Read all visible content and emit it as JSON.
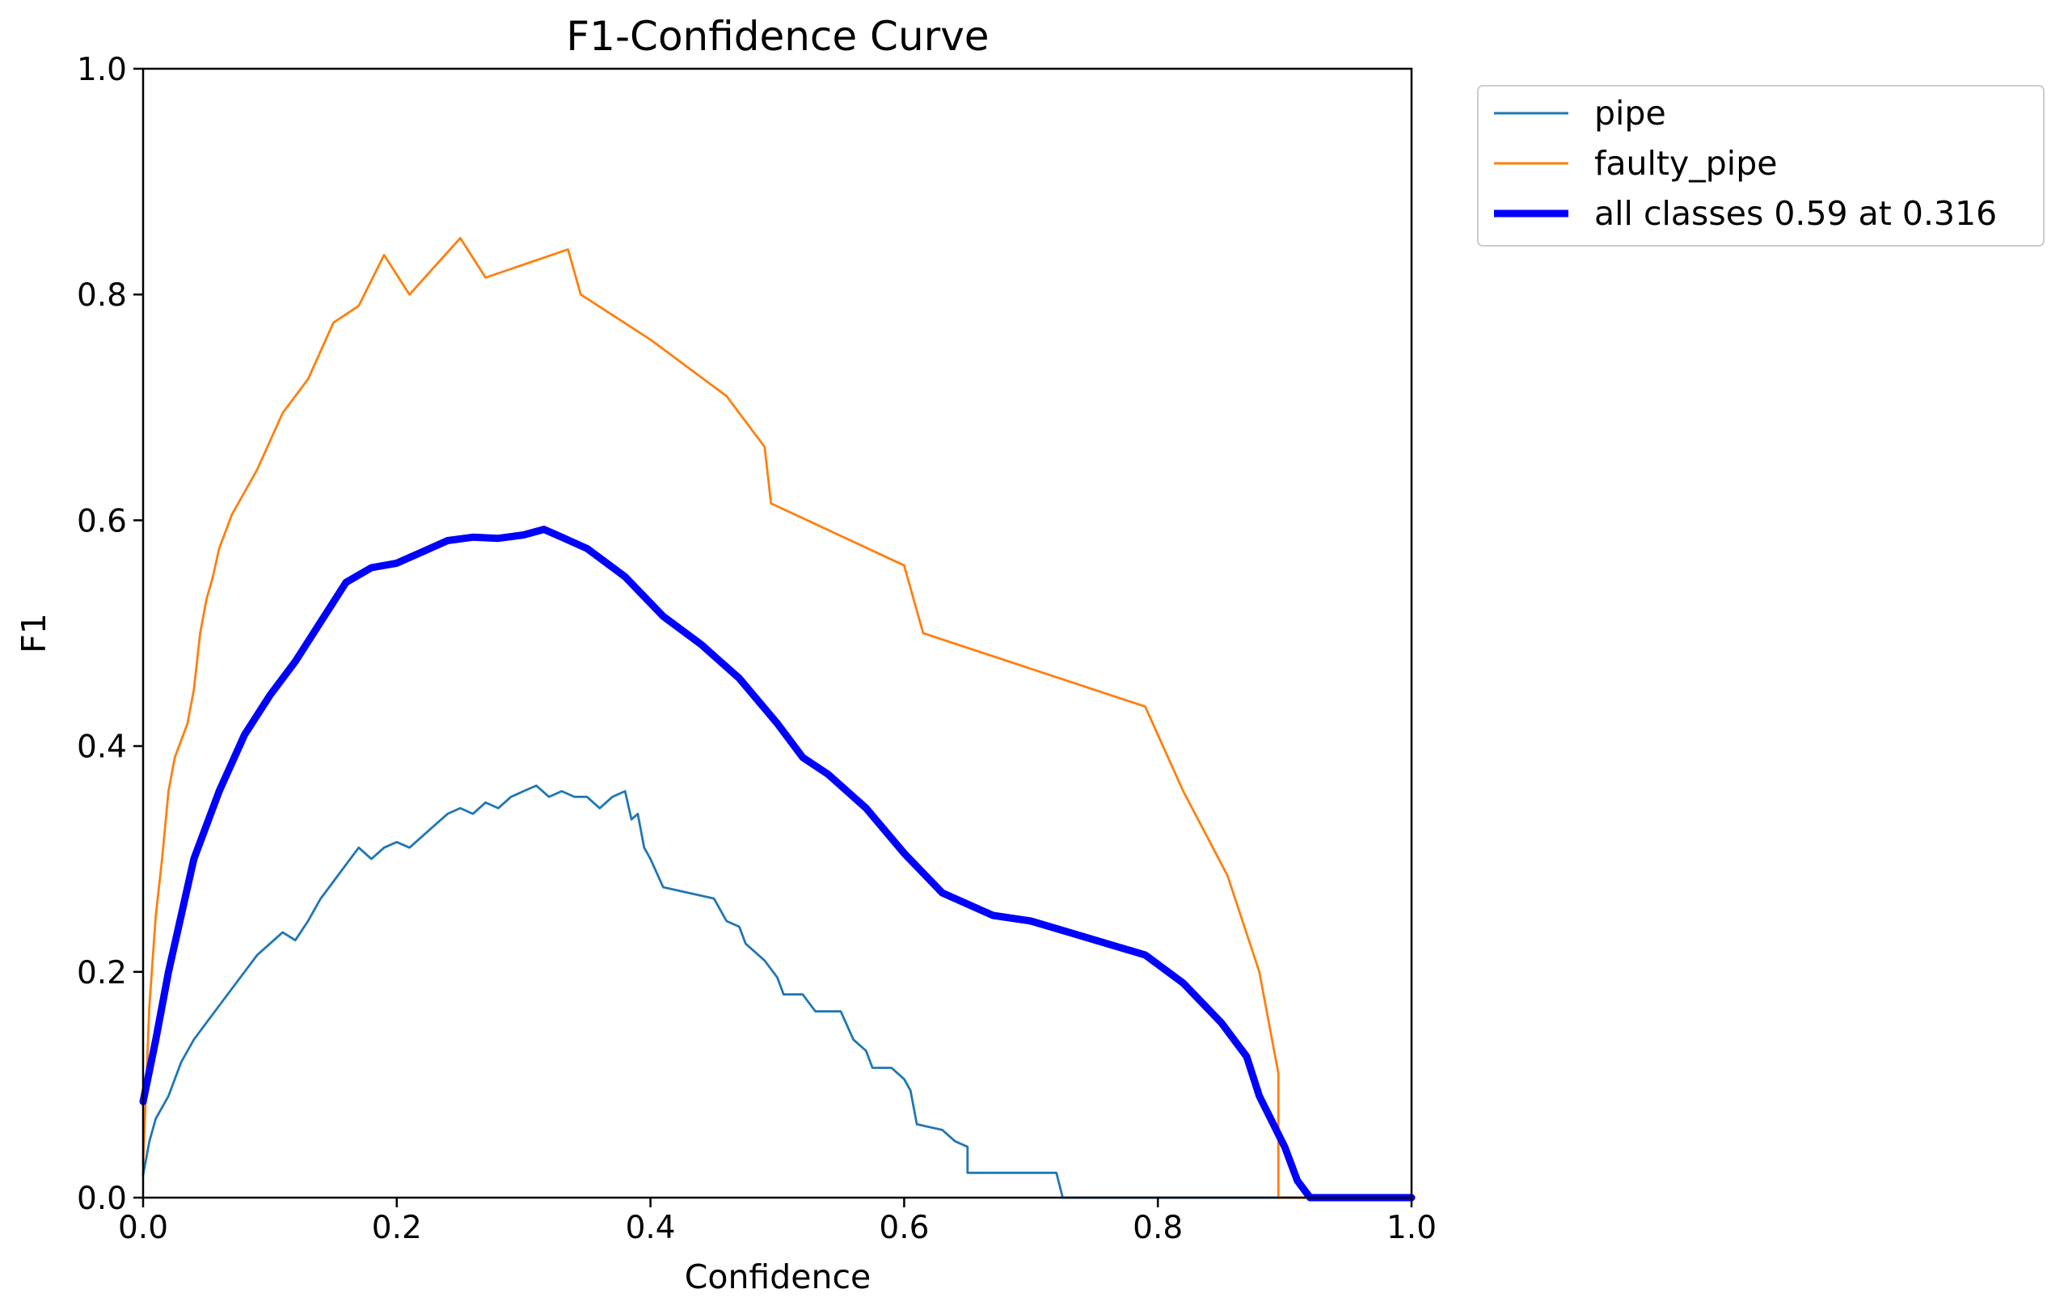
{
  "chart_data": {
    "type": "line",
    "title": "F1-Confidence Curve",
    "xlabel": "Confidence",
    "ylabel": "F1",
    "xlim": [
      0.0,
      1.0
    ],
    "ylim": [
      0.0,
      1.0
    ],
    "grid": false,
    "legend_position": "outside-top-right",
    "x_ticks": [
      "0.0",
      "0.2",
      "0.4",
      "0.6",
      "0.8",
      "1.0"
    ],
    "y_ticks": [
      "0.0",
      "0.2",
      "0.4",
      "0.6",
      "0.8",
      "1.0"
    ],
    "series": [
      {
        "name": "pipe",
        "color": "#1f77b4",
        "points": [
          [
            0.0,
            0.02
          ],
          [
            0.005,
            0.05
          ],
          [
            0.01,
            0.07
          ],
          [
            0.02,
            0.09
          ],
          [
            0.03,
            0.12
          ],
          [
            0.04,
            0.14
          ],
          [
            0.05,
            0.155
          ],
          [
            0.06,
            0.17
          ],
          [
            0.07,
            0.185
          ],
          [
            0.08,
            0.2
          ],
          [
            0.09,
            0.215
          ],
          [
            0.1,
            0.225
          ],
          [
            0.11,
            0.235
          ],
          [
            0.12,
            0.228
          ],
          [
            0.13,
            0.245
          ],
          [
            0.14,
            0.265
          ],
          [
            0.15,
            0.28
          ],
          [
            0.16,
            0.295
          ],
          [
            0.17,
            0.31
          ],
          [
            0.18,
            0.3
          ],
          [
            0.19,
            0.31
          ],
          [
            0.2,
            0.315
          ],
          [
            0.21,
            0.31
          ],
          [
            0.22,
            0.32
          ],
          [
            0.23,
            0.33
          ],
          [
            0.24,
            0.34
          ],
          [
            0.25,
            0.345
          ],
          [
            0.26,
            0.34
          ],
          [
            0.27,
            0.35
          ],
          [
            0.28,
            0.345
          ],
          [
            0.29,
            0.355
          ],
          [
            0.3,
            0.36
          ],
          [
            0.31,
            0.365
          ],
          [
            0.32,
            0.355
          ],
          [
            0.33,
            0.36
          ],
          [
            0.34,
            0.355
          ],
          [
            0.35,
            0.355
          ],
          [
            0.36,
            0.345
          ],
          [
            0.37,
            0.355
          ],
          [
            0.38,
            0.36
          ],
          [
            0.385,
            0.335
          ],
          [
            0.39,
            0.34
          ],
          [
            0.395,
            0.31
          ],
          [
            0.4,
            0.3
          ],
          [
            0.41,
            0.275
          ],
          [
            0.43,
            0.27
          ],
          [
            0.45,
            0.265
          ],
          [
            0.46,
            0.245
          ],
          [
            0.47,
            0.24
          ],
          [
            0.475,
            0.225
          ],
          [
            0.49,
            0.21
          ],
          [
            0.5,
            0.195
          ],
          [
            0.505,
            0.18
          ],
          [
            0.52,
            0.18
          ],
          [
            0.53,
            0.165
          ],
          [
            0.55,
            0.165
          ],
          [
            0.56,
            0.14
          ],
          [
            0.57,
            0.13
          ],
          [
            0.575,
            0.115
          ],
          [
            0.59,
            0.115
          ],
          [
            0.6,
            0.105
          ],
          [
            0.605,
            0.095
          ],
          [
            0.61,
            0.065
          ],
          [
            0.63,
            0.06
          ],
          [
            0.64,
            0.05
          ],
          [
            0.65,
            0.045
          ],
          [
            0.65,
            0.022
          ],
          [
            0.67,
            0.022
          ],
          [
            0.7,
            0.022
          ],
          [
            0.72,
            0.022
          ],
          [
            0.725,
            0.0
          ],
          [
            1.0,
            0.0
          ]
        ]
      },
      {
        "name": "faulty_pipe",
        "color": "#ff7f0e",
        "points": [
          [
            0.0,
            0.03
          ],
          [
            0.005,
            0.17
          ],
          [
            0.01,
            0.25
          ],
          [
            0.015,
            0.3
          ],
          [
            0.02,
            0.36
          ],
          [
            0.025,
            0.39
          ],
          [
            0.03,
            0.405
          ],
          [
            0.035,
            0.42
          ],
          [
            0.04,
            0.45
          ],
          [
            0.045,
            0.5
          ],
          [
            0.05,
            0.53
          ],
          [
            0.055,
            0.55
          ],
          [
            0.06,
            0.575
          ],
          [
            0.065,
            0.59
          ],
          [
            0.07,
            0.605
          ],
          [
            0.08,
            0.625
          ],
          [
            0.09,
            0.645
          ],
          [
            0.1,
            0.67
          ],
          [
            0.11,
            0.695
          ],
          [
            0.12,
            0.71
          ],
          [
            0.13,
            0.725
          ],
          [
            0.14,
            0.75
          ],
          [
            0.15,
            0.775
          ],
          [
            0.17,
            0.79
          ],
          [
            0.19,
            0.835
          ],
          [
            0.21,
            0.8
          ],
          [
            0.23,
            0.825
          ],
          [
            0.25,
            0.85
          ],
          [
            0.27,
            0.815
          ],
          [
            0.335,
            0.84
          ],
          [
            0.345,
            0.8
          ],
          [
            0.4,
            0.76
          ],
          [
            0.46,
            0.71
          ],
          [
            0.49,
            0.665
          ],
          [
            0.495,
            0.615
          ],
          [
            0.6,
            0.56
          ],
          [
            0.615,
            0.5
          ],
          [
            0.79,
            0.435
          ],
          [
            0.82,
            0.36
          ],
          [
            0.855,
            0.285
          ],
          [
            0.88,
            0.2
          ],
          [
            0.895,
            0.11
          ],
          [
            0.895,
            0.0
          ],
          [
            1.0,
            0.0
          ]
        ]
      },
      {
        "name": "all classes 0.59 at 0.316",
        "color": "#0000ff",
        "points": [
          [
            0.0,
            0.085
          ],
          [
            0.01,
            0.14
          ],
          [
            0.02,
            0.2
          ],
          [
            0.03,
            0.25
          ],
          [
            0.04,
            0.3
          ],
          [
            0.06,
            0.36
          ],
          [
            0.08,
            0.41
          ],
          [
            0.1,
            0.445
          ],
          [
            0.12,
            0.475
          ],
          [
            0.14,
            0.51
          ],
          [
            0.16,
            0.545
          ],
          [
            0.18,
            0.558
          ],
          [
            0.2,
            0.562
          ],
          [
            0.22,
            0.572
          ],
          [
            0.24,
            0.582
          ],
          [
            0.26,
            0.585
          ],
          [
            0.28,
            0.584
          ],
          [
            0.3,
            0.587
          ],
          [
            0.316,
            0.592
          ],
          [
            0.33,
            0.585
          ],
          [
            0.35,
            0.575
          ],
          [
            0.38,
            0.55
          ],
          [
            0.41,
            0.515
          ],
          [
            0.44,
            0.49
          ],
          [
            0.47,
            0.46
          ],
          [
            0.5,
            0.42
          ],
          [
            0.52,
            0.39
          ],
          [
            0.54,
            0.375
          ],
          [
            0.57,
            0.345
          ],
          [
            0.6,
            0.305
          ],
          [
            0.63,
            0.27
          ],
          [
            0.67,
            0.25
          ],
          [
            0.7,
            0.245
          ],
          [
            0.73,
            0.235
          ],
          [
            0.76,
            0.225
          ],
          [
            0.79,
            0.215
          ],
          [
            0.82,
            0.19
          ],
          [
            0.85,
            0.155
          ],
          [
            0.87,
            0.125
          ],
          [
            0.88,
            0.09
          ],
          [
            0.9,
            0.045
          ],
          [
            0.91,
            0.015
          ],
          [
            0.92,
            0.0
          ],
          [
            1.0,
            0.0
          ]
        ]
      }
    ]
  }
}
